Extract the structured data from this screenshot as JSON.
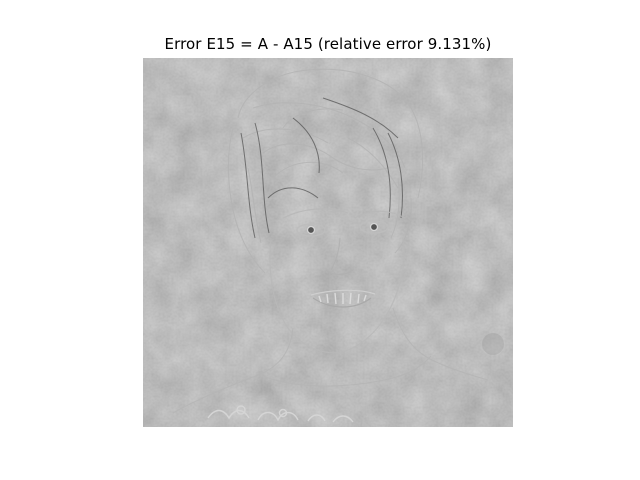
{
  "figure": {
    "title": "Error E15 = A - A15 (relative error 9.131%)"
  },
  "image": {
    "description_icon": "grayscale-residual-portrait",
    "colormap": "gray",
    "base_gray": "#7d7d7d"
  }
}
